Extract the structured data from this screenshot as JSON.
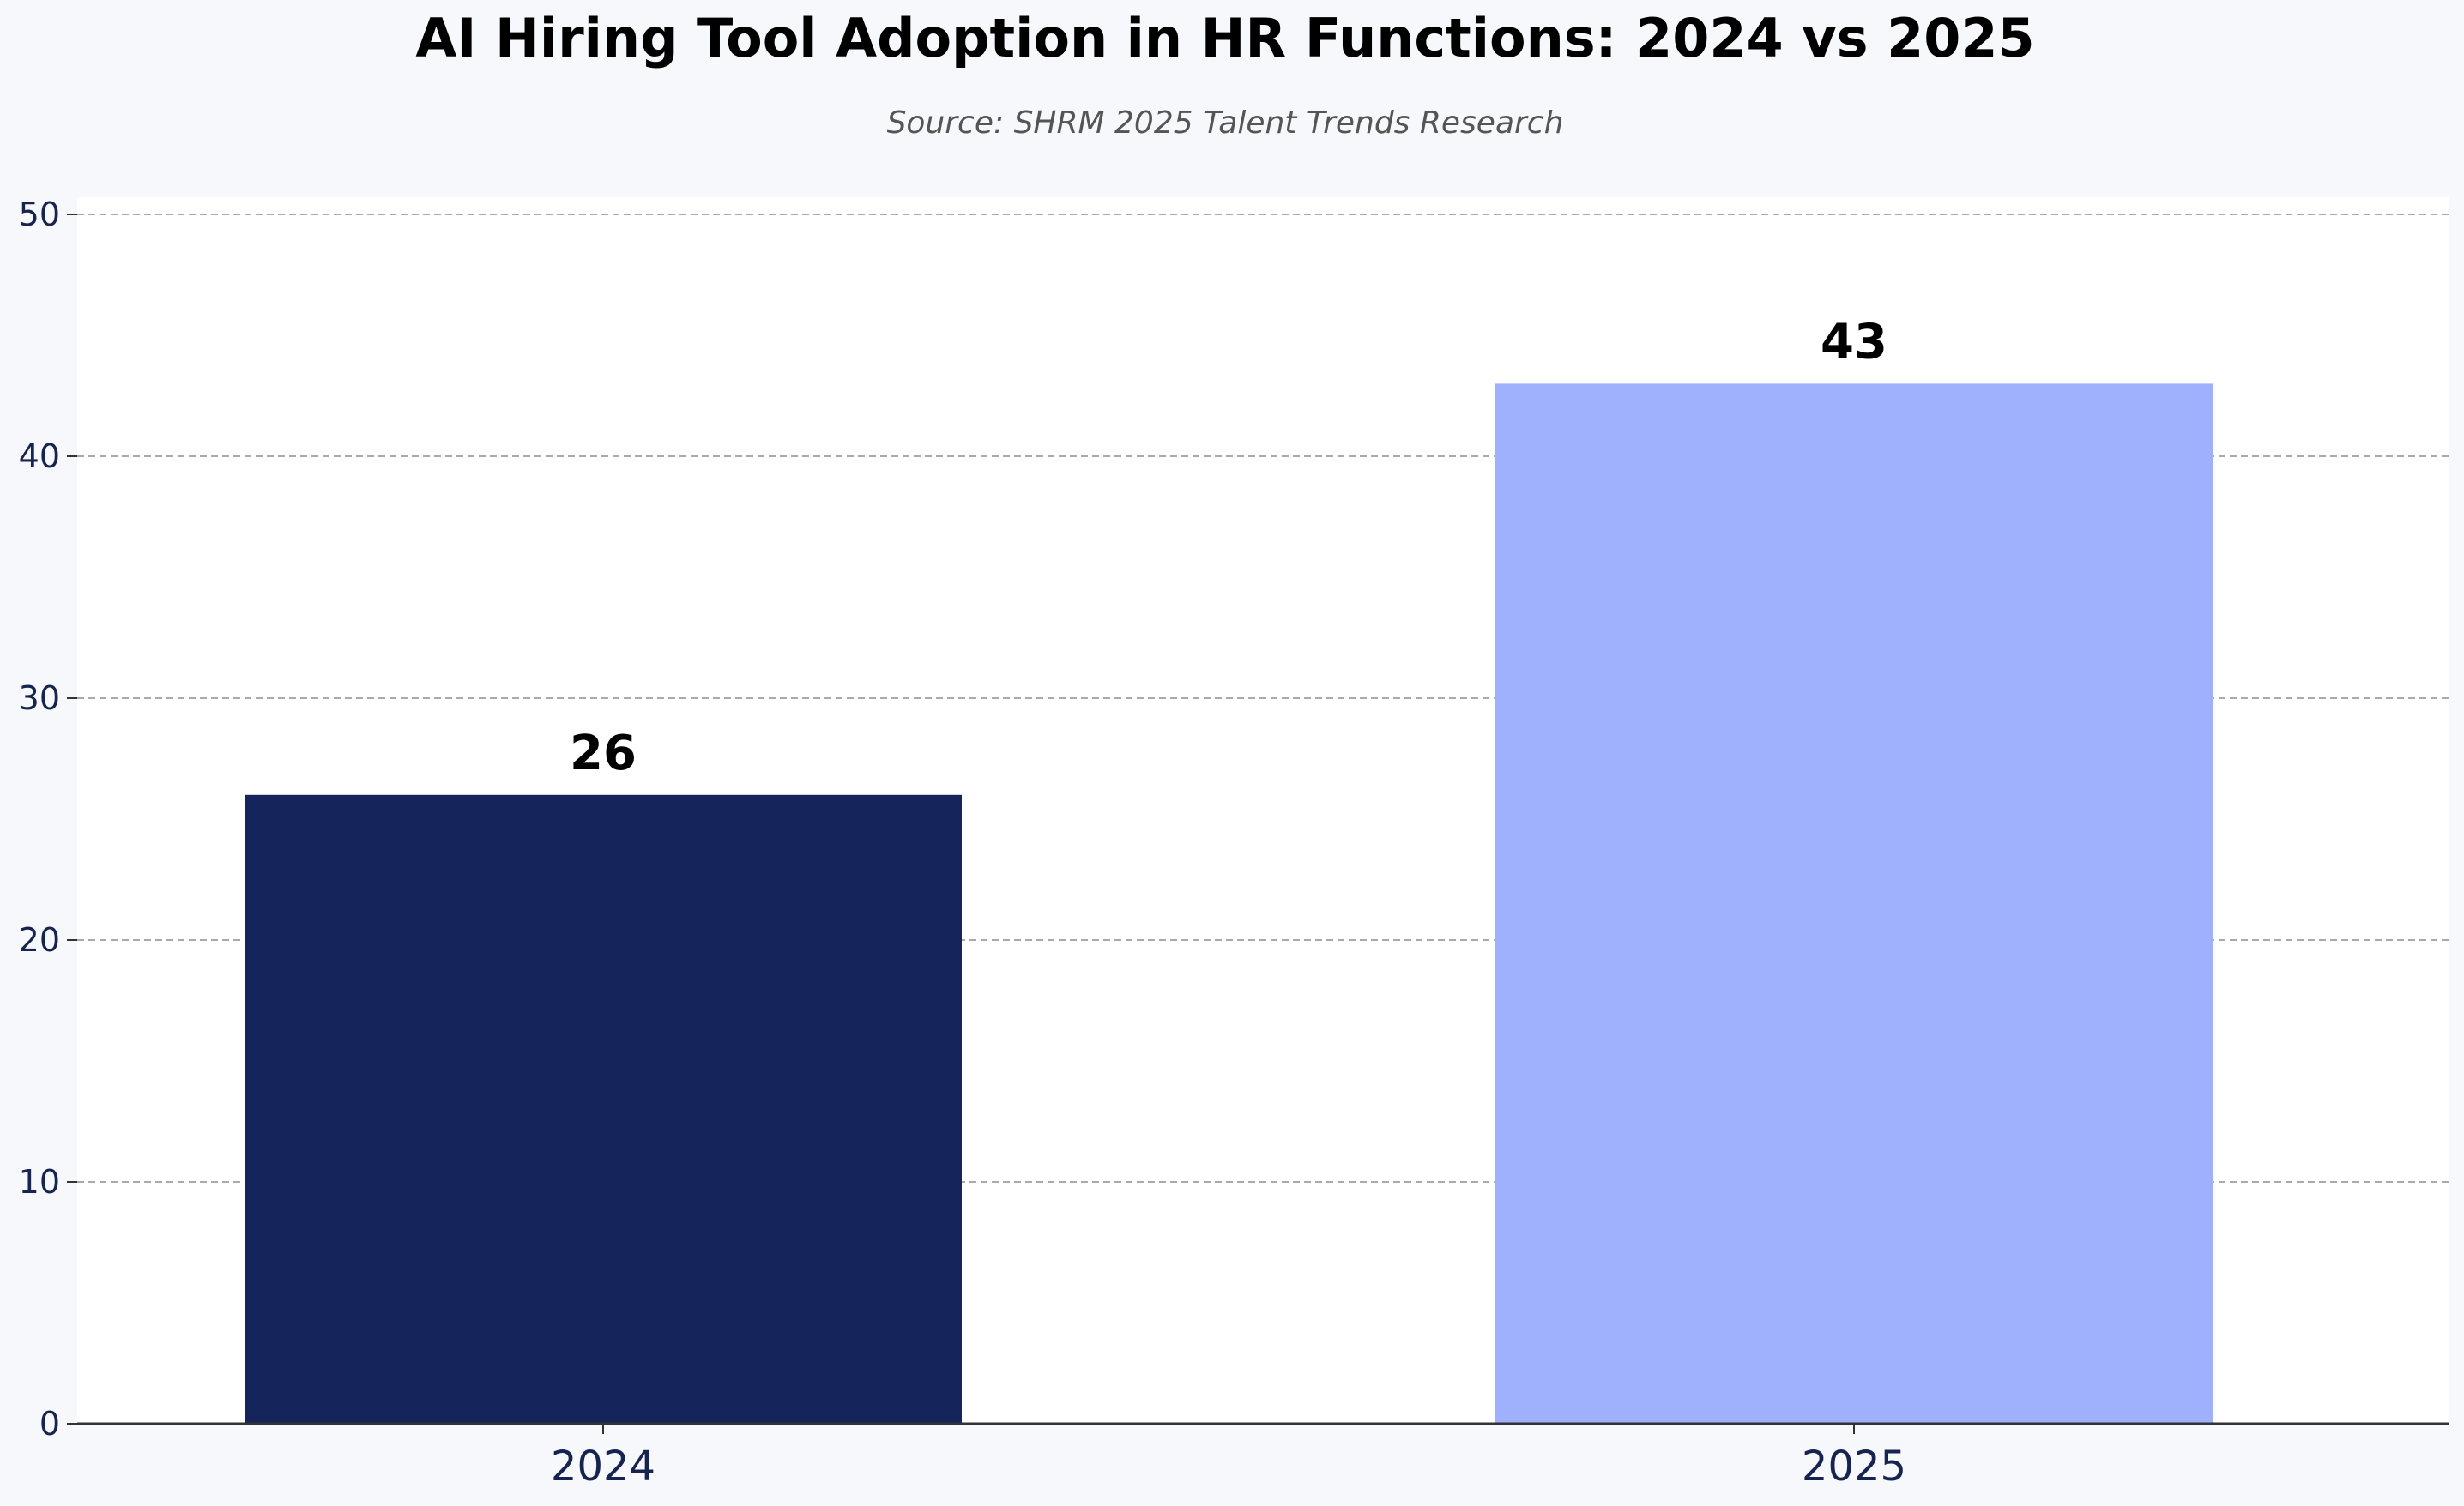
{
  "chart_data": {
    "type": "bar",
    "title": "AI Hiring Tool Adoption in HR Functions: 2024 vs 2025",
    "subtitle": "Source: SHRM 2025 Talent Trends Research",
    "xlabel": "",
    "ylabel": "",
    "categories": [
      "2024",
      "2025"
    ],
    "values": [
      26,
      43
    ],
    "data_labels": [
      "26",
      "43"
    ],
    "bar_colors": [
      "#15255c",
      "#9fb0fc"
    ],
    "ylim": [
      0,
      50
    ],
    "yticks": [
      0,
      10,
      20,
      30,
      40,
      50
    ],
    "ytick_labels": [
      "0",
      "10",
      "20",
      "30",
      "40",
      "50"
    ],
    "grid": true,
    "grid_style": "dashed",
    "plot_background": "#ffffff",
    "page_background": "#f7f8fc"
  }
}
